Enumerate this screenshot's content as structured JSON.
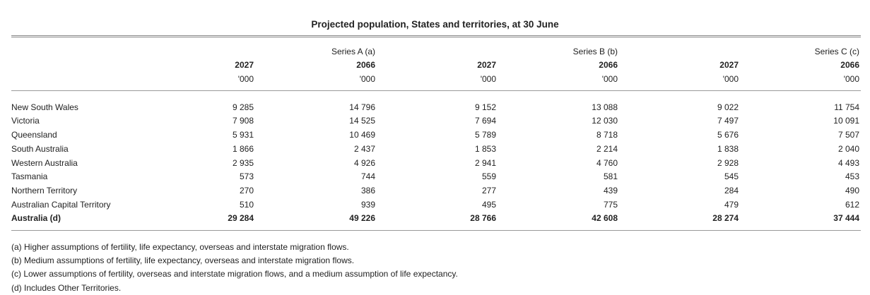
{
  "title": "Projected population, States and territories, at 30 June",
  "series": [
    {
      "name": "Series A (a)"
    },
    {
      "name": "Series B (b)"
    },
    {
      "name": "Series C (c)"
    }
  ],
  "year_left": "2027",
  "year_right": "2066",
  "unit": "'000",
  "rows": [
    {
      "label": "New South Wales",
      "values": [
        "9 285",
        "14 796",
        "9 152",
        "13 088",
        "9 022",
        "11 754"
      ]
    },
    {
      "label": "Victoria",
      "values": [
        "7 908",
        "14 525",
        "7 694",
        "12 030",
        "7 497",
        "10 091"
      ]
    },
    {
      "label": "Queensland",
      "values": [
        "5 931",
        "10 469",
        "5 789",
        "8 718",
        "5 676",
        "7 507"
      ]
    },
    {
      "label": "South Australia",
      "values": [
        "1 866",
        "2 437",
        "1 853",
        "2 214",
        "1 838",
        "2 040"
      ]
    },
    {
      "label": "Western Australia",
      "values": [
        "2 935",
        "4 926",
        "2 941",
        "4 760",
        "2 928",
        "4 493"
      ]
    },
    {
      "label": "Tasmania",
      "values": [
        "573",
        "744",
        "559",
        "581",
        "545",
        "453"
      ]
    },
    {
      "label": "Northern Territory",
      "values": [
        "270",
        "386",
        "277",
        "439",
        "284",
        "490"
      ]
    },
    {
      "label": "Australian Capital Territory",
      "values": [
        "510",
        "939",
        "495",
        "775",
        "479",
        "612"
      ]
    }
  ],
  "total": {
    "label": "Australia (d)",
    "values": [
      "29 284",
      "49 226",
      "28 766",
      "42 608",
      "28 274",
      "37 444"
    ]
  },
  "notes": [
    "(a) Higher assumptions of fertility, life expectancy, overseas and interstate migration flows.",
    "(b) Medium assumptions of fertility, life expectancy, overseas and interstate migration flows.",
    "(c) Lower assumptions of fertility, overseas and interstate migration flows, and a medium assumption of life expectancy.",
    "(d) Includes Other Territories."
  ]
}
